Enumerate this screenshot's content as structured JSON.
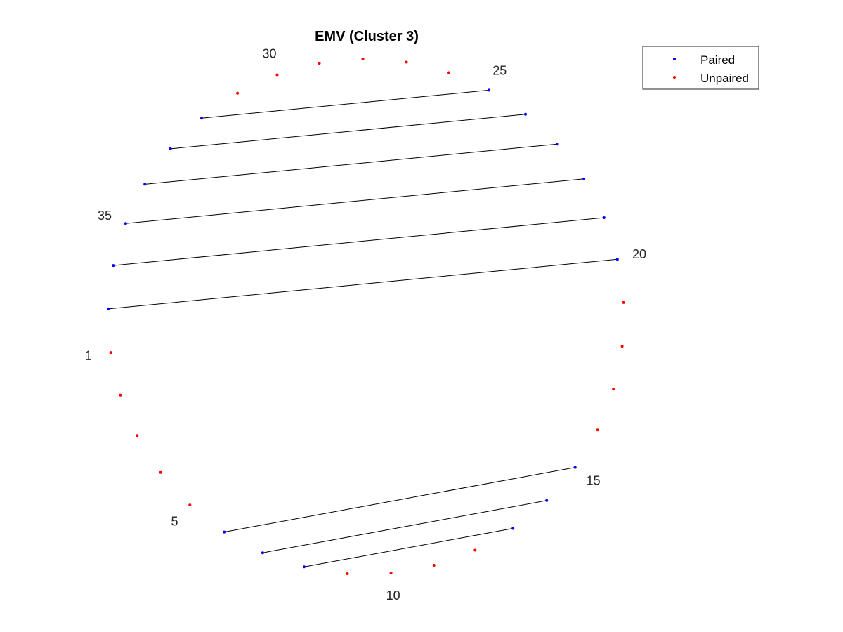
{
  "chart_data": {
    "type": "scatter",
    "layout": "circular-arc-diagram",
    "title": "EMV (Cluster 3)",
    "xlabel": "",
    "ylabel": "",
    "grid": false,
    "axes_visible": false,
    "legend_position": "top-right",
    "node_count": 37,
    "node_labels": [
      "1",
      "5",
      "10",
      "15",
      "20",
      "25",
      "30",
      "35"
    ],
    "labeled_nodes": [
      1,
      5,
      10,
      15,
      20,
      25,
      30,
      35
    ],
    "series": [
      {
        "name": "Paired",
        "color": "#0000ff",
        "marker": "dot",
        "nodes": [
          6,
          7,
          8,
          13,
          14,
          15,
          20,
          21,
          22,
          23,
          24,
          25,
          32,
          33,
          34,
          35,
          36,
          37
        ]
      },
      {
        "name": "Unpaired",
        "color": "#ff0000",
        "marker": "dot",
        "nodes": [
          1,
          2,
          3,
          4,
          5,
          9,
          10,
          11,
          12,
          16,
          17,
          18,
          19,
          26,
          27,
          28,
          29,
          30,
          31
        ]
      }
    ],
    "pairs": [
      [
        6,
        15
      ],
      [
        7,
        14
      ],
      [
        8,
        13
      ],
      [
        20,
        37
      ],
      [
        21,
        36
      ],
      [
        22,
        35
      ],
      [
        23,
        34
      ],
      [
        24,
        33
      ],
      [
        25,
        32
      ]
    ],
    "link_color": "#000000"
  }
}
